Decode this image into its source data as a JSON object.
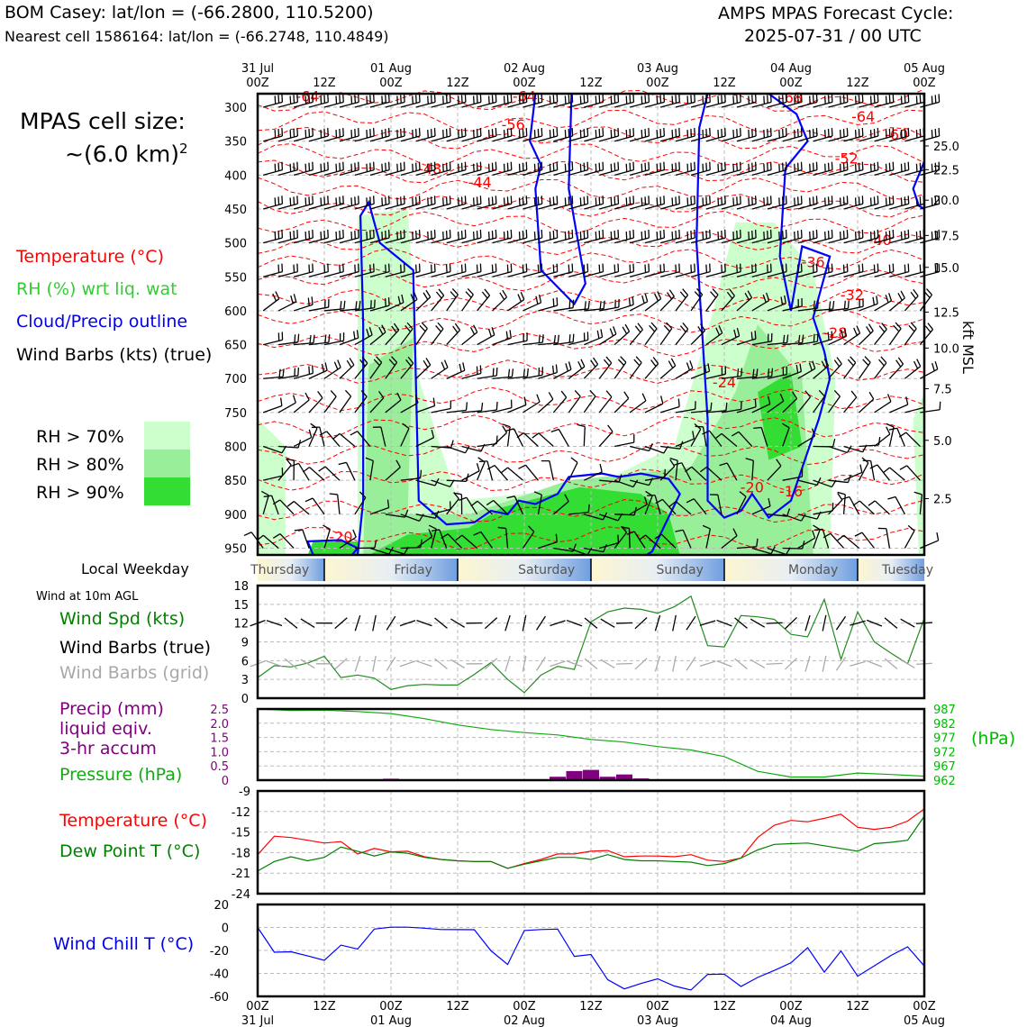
{
  "header": {
    "station_title": "BOM Casey: lat/lon = (-66.2800, 110.5200)",
    "nearest_cell": "Nearest cell 1586164: lat/lon = (-66.2748, 110.4849)",
    "cycle_line1": "AMPS MPAS Forecast Cycle:",
    "cycle_line2": "2025-07-31 / 00 UTC"
  },
  "cell_size": {
    "line1": "MPAS cell size:",
    "line2": "~(6.0 km)",
    "sup": "2"
  },
  "legend": {
    "temperature": "Temperature (°C)",
    "rh": "RH (%) wrt liq. wat",
    "cloud": "Cloud/Precip outline",
    "barbs": "Wind Barbs (kts) (true)",
    "rh70": "RH > 70%",
    "rh80": "RH > 80%",
    "rh90": "RH > 90%",
    "rh_colors": [
      "#ccffcc",
      "#99ee99",
      "#33dd33"
    ]
  },
  "time_axis": {
    "top_labels": [
      {
        "l1": "31 Jul",
        "l2": "00Z"
      },
      {
        "l1": "",
        "l2": "12Z"
      },
      {
        "l1": "01 Aug",
        "l2": "00Z"
      },
      {
        "l1": "",
        "l2": "12Z"
      },
      {
        "l1": "02 Aug",
        "l2": "00Z"
      },
      {
        "l1": "",
        "l2": "12Z"
      },
      {
        "l1": "03 Aug",
        "l2": "00Z"
      },
      {
        "l1": "",
        "l2": "12Z"
      },
      {
        "l1": "04 Aug",
        "l2": "00Z"
      },
      {
        "l1": "",
        "l2": "12Z"
      },
      {
        "l1": "05 Aug",
        "l2": "00Z"
      }
    ],
    "bottom_labels": [
      {
        "l1": "00Z",
        "l2": "31 Jul"
      },
      {
        "l1": "12Z",
        "l2": ""
      },
      {
        "l1": "00Z",
        "l2": "01 Aug"
      },
      {
        "l1": "12Z",
        "l2": ""
      },
      {
        "l1": "00Z",
        "l2": "02 Aug"
      },
      {
        "l1": "12Z",
        "l2": ""
      },
      {
        "l1": "00Z",
        "l2": "03 Aug"
      },
      {
        "l1": "12Z",
        "l2": ""
      },
      {
        "l1": "00Z",
        "l2": "04 Aug"
      },
      {
        "l1": "12Z",
        "l2": ""
      },
      {
        "l1": "00Z",
        "l2": "05 Aug"
      }
    ]
  },
  "weekday": {
    "title": "Local Weekday",
    "days": [
      "Thursday",
      "Friday",
      "Saturday",
      "Sunday",
      "Monday",
      "Tuesday"
    ]
  },
  "chart_data": [
    {
      "type": "heatmap",
      "title": "",
      "ylabel": "",
      "ylabel_right": "kft MSL",
      "y_ticks_hpa": [
        300,
        350,
        400,
        450,
        500,
        550,
        600,
        650,
        700,
        750,
        800,
        850,
        900,
        950
      ],
      "y_ticks_kft": [
        "25.0",
        "22.5",
        "20.0",
        "17.5",
        "15.0",
        "12.5",
        "10.0",
        "7.5",
        "5.0",
        "2.5"
      ],
      "kft_ticks_at_hpa": [
        357,
        392,
        437,
        489,
        536,
        602,
        655,
        715,
        791,
        877
      ],
      "ylim_hpa": [
        960,
        280
      ],
      "xlim_hours": [
        0,
        120
      ],
      "temperature_labels": [
        {
          "v": "-64",
          "h": 9,
          "p": 283
        },
        {
          "v": "-64",
          "h": 48,
          "p": 283
        },
        {
          "v": "-68",
          "h": 96,
          "p": 285
        },
        {
          "v": "-56",
          "h": 46,
          "p": 325
        },
        {
          "v": "-64",
          "h": 109,
          "p": 313
        },
        {
          "v": "-60",
          "h": 115,
          "p": 340
        },
        {
          "v": "-52",
          "h": 106,
          "p": 375
        },
        {
          "v": "-48",
          "h": 31,
          "p": 390
        },
        {
          "v": "-44",
          "h": 40,
          "p": 410
        },
        {
          "v": "-40",
          "h": 112,
          "p": 495
        },
        {
          "v": "-36",
          "h": 100,
          "p": 528
        },
        {
          "v": "-32",
          "h": 107,
          "p": 576
        },
        {
          "v": "-28",
          "h": 104,
          "p": 632
        },
        {
          "v": "-24",
          "h": 84,
          "p": 705
        },
        {
          "v": "-20",
          "h": 89,
          "p": 860
        },
        {
          "v": "-16",
          "h": 96,
          "p": 866
        },
        {
          "v": "-20",
          "h": 15,
          "p": 933
        }
      ],
      "rh_legend": [
        "RH > 70%",
        "RH > 80%",
        "RH > 90%"
      ]
    },
    {
      "type": "line",
      "title": "Wind at 10m AGL",
      "ylabel": "Wind Spd (kts)",
      "ylim": [
        0,
        18
      ],
      "yticks": [
        0,
        3,
        6,
        9,
        12,
        15,
        18
      ],
      "x": [
        0,
        3,
        6,
        9,
        12,
        15,
        18,
        21,
        24,
        27,
        30,
        33,
        36,
        39,
        42,
        45,
        48,
        51,
        54,
        57,
        60,
        63,
        66,
        69,
        72,
        75,
        78,
        81,
        84,
        87,
        90,
        93,
        96,
        99,
        102,
        105,
        108,
        111,
        114,
        117,
        120
      ],
      "series": [
        {
          "name": "Wind Spd (kts)",
          "color": "#228b22",
          "values": [
            3.3,
            5.2,
            5.0,
            5.6,
            6.7,
            3.3,
            3.7,
            3.2,
            1.4,
            2.0,
            2.2,
            2.1,
            2.1,
            3.8,
            5.7,
            3.0,
            0.9,
            3.7,
            5.1,
            4.6,
            12.2,
            13.8,
            14.4,
            14.2,
            13.6,
            14.6,
            16.3,
            8.4,
            8.2,
            13.2,
            13.0,
            12.6,
            10.2,
            9.8,
            15.8,
            6.2,
            13.8,
            9.0,
            7.2,
            5.5,
            12.8
          ]
        }
      ],
      "legend_barbs_true": "Wind Barbs (true)",
      "legend_barbs_grid": "Wind Barbs (grid)"
    },
    {
      "type": "bar",
      "title": "",
      "ylabel": "Precip (mm)",
      "ylabel_lines": [
        "Precip (mm)",
        "liquid eqiv.",
        "3-hr accum"
      ],
      "ylim": [
        0,
        2.5
      ],
      "yticks": [
        "0",
        "0.5",
        "1.0",
        "1.5",
        "2.0",
        "2.5"
      ],
      "categories": [
        24,
        54,
        57,
        60,
        63,
        66,
        69
      ],
      "values": [
        0.05,
        0.12,
        0.32,
        0.36,
        0.12,
        0.2,
        0.06
      ],
      "pressure": {
        "name": "Pressure (hPa)",
        "ylabel_right": "(hPa)",
        "ylim": [
          962,
          987
        ],
        "yticks": [
          "987",
          "982",
          "977",
          "972",
          "967",
          "962"
        ],
        "x": [
          0,
          6,
          12,
          18,
          24,
          30,
          36,
          42,
          48,
          54,
          60,
          66,
          72,
          78,
          84,
          90,
          96,
          102,
          108,
          114,
          120
        ],
        "values": [
          987,
          986.5,
          986.6,
          986.1,
          985.4,
          983.6,
          981.4,
          979.8,
          978.7,
          977.9,
          976.3,
          975.4,
          973.8,
          972.6,
          970.3,
          965.1,
          963.1,
          963.1,
          964.5,
          964.0,
          963.4
        ]
      }
    },
    {
      "type": "line",
      "title": "",
      "ylim": [
        -24,
        -9
      ],
      "yticks": [
        -24,
        -21,
        -18,
        -15,
        -12,
        -9
      ],
      "x": [
        0,
        3,
        6,
        9,
        12,
        15,
        18,
        21,
        24,
        27,
        30,
        33,
        36,
        39,
        42,
        45,
        48,
        51,
        54,
        57,
        60,
        63,
        66,
        69,
        72,
        75,
        78,
        81,
        84,
        87,
        90,
        93,
        96,
        99,
        102,
        105,
        108,
        111,
        114,
        117,
        120
      ],
      "series": [
        {
          "name": "Temperature (°C)",
          "color": "#ff0000",
          "values": [
            -18.3,
            -15.6,
            -15.8,
            -16.2,
            -16.6,
            -16.4,
            -18.2,
            -17.4,
            -17.9,
            -17.8,
            -18.6,
            -19.0,
            -19.2,
            -19.3,
            -19.3,
            -20.3,
            -19.6,
            -19.0,
            -18.2,
            -18.2,
            -17.8,
            -17.7,
            -18.6,
            -18.5,
            -18.5,
            -18.6,
            -18.3,
            -19.1,
            -19.3,
            -18.8,
            -15.8,
            -14.0,
            -13.3,
            -13.5,
            -13.0,
            -12.4,
            -14.3,
            -14.6,
            -14.3,
            -13.4,
            -11.6
          ]
        },
        {
          "name": "Dew Point T (°C)",
          "color": "#008000",
          "values": [
            -20.7,
            -19.3,
            -18.6,
            -19.2,
            -18.7,
            -17.2,
            -17.8,
            -18.5,
            -17.9,
            -18.1,
            -18.7,
            -19.0,
            -19.2,
            -19.3,
            -19.3,
            -20.3,
            -19.7,
            -19.2,
            -18.7,
            -18.7,
            -19.0,
            -18.3,
            -19.0,
            -19.2,
            -19.2,
            -19.3,
            -19.4,
            -19.9,
            -19.6,
            -18.8,
            -17.6,
            -16.8,
            -16.7,
            -16.6,
            -17.0,
            -17.4,
            -17.8,
            -16.7,
            -16.5,
            -16.2,
            -12.7
          ]
        }
      ],
      "legend_lines": [
        "Temperature (°C)",
        "Dew Point T (°C)"
      ]
    },
    {
      "type": "line",
      "title": "",
      "ylabel": "Wind Chill T (°C)",
      "ylim": [
        -60,
        20
      ],
      "yticks": [
        -60,
        -40,
        -20,
        0,
        20
      ],
      "x": [
        0,
        3,
        6,
        9,
        12,
        15,
        18,
        21,
        24,
        27,
        30,
        33,
        36,
        39,
        42,
        45,
        48,
        51,
        54,
        57,
        60,
        63,
        66,
        69,
        72,
        75,
        78,
        81,
        84,
        87,
        90,
        93,
        96,
        99,
        102,
        105,
        108,
        111,
        114,
        117,
        120
      ],
      "series": [
        {
          "name": "Wind Chill T (°C)",
          "color": "#0000ff",
          "values": [
            0,
            -21.6,
            -21.2,
            -24.8,
            -28.6,
            -15.4,
            -18.8,
            -1.4,
            0.2,
            0.2,
            -0.6,
            -1.8,
            -1.9,
            -2.0,
            -20.3,
            -32.2,
            -2.7,
            -1.8,
            -1.4,
            -25.2,
            -23.5,
            -45.4,
            -53.5,
            -48.8,
            -44.7,
            -51.0,
            -54.4,
            -40.9,
            -40.6,
            -51.4,
            -43.5,
            -37.4,
            -30.8,
            -17.6,
            -38.9,
            -20.5,
            -42.4,
            -33.4,
            -24.4,
            -16.9,
            -33.6
          ]
        }
      ]
    }
  ]
}
